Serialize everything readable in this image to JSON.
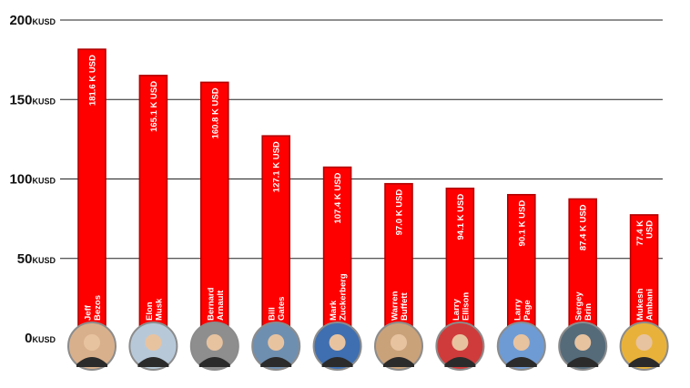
{
  "chart_data": {
    "type": "bar",
    "title": "",
    "xlabel": "",
    "ylabel": "",
    "ylim": [
      0,
      200
    ],
    "yticks": [
      {
        "value": 0,
        "label": "0",
        "unit": "KUSD"
      },
      {
        "value": 50,
        "label": "50",
        "unit": "KUSD"
      },
      {
        "value": 100,
        "label": "100",
        "unit": "KUSD"
      },
      {
        "value": 150,
        "label": "150",
        "unit": "KUSD"
      },
      {
        "value": 200,
        "label": "200",
        "unit": "KUSD"
      }
    ],
    "grid": true,
    "categories": [
      [
        "Jeff",
        "Bezos"
      ],
      [
        "Elon",
        "Musk"
      ],
      [
        "Bernard",
        "Arnault"
      ],
      [
        "Bill",
        "Gates"
      ],
      [
        "Mark",
        "Zuckerberg"
      ],
      [
        "Warren",
        "Buffett"
      ],
      [
        "Larry",
        "Ellison"
      ],
      [
        "Larry",
        "Page"
      ],
      [
        "Sergey",
        "Brin"
      ],
      [
        "Mukesh",
        "Ambani"
      ]
    ],
    "values": [
      181.6,
      165.1,
      160.8,
      127.1,
      107.4,
      97.0,
      94.1,
      90.1,
      87.4,
      77.4
    ],
    "value_labels": [
      [
        "181.6 K USD"
      ],
      [
        "165.1 K USD"
      ],
      [
        "160.8 K USD"
      ],
      [
        "127.1 K USD"
      ],
      [
        "107.4 K USD"
      ],
      [
        "97.0 K USD"
      ],
      [
        "94.1 K USD"
      ],
      [
        "90.1 K USD"
      ],
      [
        "87.4 K USD"
      ],
      [
        "77.4 K",
        "USD"
      ]
    ],
    "bar_color": "#ff0000",
    "bar_edge_color": "#b30000",
    "avatar_colors": [
      "#d9b08c",
      "#b7c9d9",
      "#8e8e8e",
      "#6f8fb0",
      "#3f6fb0",
      "#caa27a",
      "#cf3b3b",
      "#6f9bd4",
      "#556b7a",
      "#e8b23a"
    ]
  }
}
